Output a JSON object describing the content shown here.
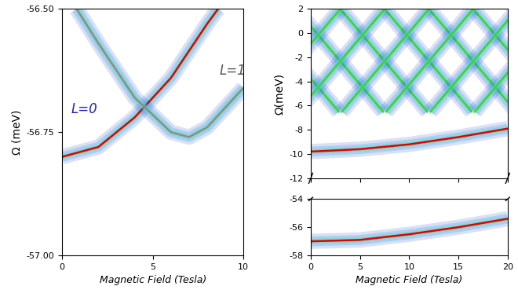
{
  "chart_data": [
    {
      "type": "line",
      "x_label": "Magnetic Field (Tesla)",
      "y_label": "Ω (meV)",
      "xlim": [
        0,
        10
      ],
      "ylim": [
        -57.0,
        -56.5
      ],
      "xticks": [
        0,
        5,
        10
      ],
      "yticks": [
        {
          "value": -57.0,
          "label": "-57.00"
        },
        {
          "value": -56.75,
          "label": "-56.75"
        },
        {
          "value": -56.5,
          "label": "-56.50"
        }
      ],
      "series": [
        {
          "name": "L=0",
          "color": "#e00000",
          "x": [
            0,
            2,
            4,
            6,
            8,
            8.6
          ],
          "values": [
            -56.8,
            -56.78,
            -56.72,
            -56.64,
            -56.53,
            -56.5
          ]
        },
        {
          "name": "L=1",
          "color": "#8c8c8c",
          "x": [
            0.8,
            2,
            4,
            6,
            7,
            8,
            10
          ],
          "values": [
            -56.5,
            -56.57,
            -56.68,
            -56.75,
            -56.76,
            -56.74,
            -56.66
          ]
        }
      ]
    },
    {
      "type": "line",
      "y_label": "Ω(meV)",
      "xlim": [
        0,
        20
      ],
      "ylim": [
        -12,
        2
      ],
      "xticks": [
        0,
        5,
        10,
        15,
        20
      ],
      "yticks": [
        2,
        0,
        -2,
        -4,
        -6,
        -8,
        -10,
        -12
      ],
      "tick_labels": "y",
      "series": [
        {
          "color": "#e00000",
          "x": [
            0,
            5,
            10,
            15,
            20
          ],
          "values": [
            -9.8,
            -9.6,
            -9.2,
            -8.6,
            -7.9
          ]
        },
        {
          "color": "#40d040",
          "x": [
            -6,
            2.85
          ],
          "values": [
            2,
            -6.5
          ]
        },
        {
          "color": "#40d040",
          "x": [
            -1.5,
            7.35
          ],
          "values": [
            2,
            -6.5
          ]
        },
        {
          "color": "#40d040",
          "x": [
            3,
            11.85
          ],
          "values": [
            2,
            -6.5
          ]
        },
        {
          "color": "#40d040",
          "x": [
            7.5,
            16.35
          ],
          "values": [
            2,
            -6.5
          ]
        },
        {
          "color": "#40d040",
          "x": [
            12,
            20.85
          ],
          "values": [
            2,
            -6.5
          ]
        },
        {
          "color": "#40d040",
          "x": [
            16.5,
            25.35
          ],
          "values": [
            2,
            -6.5
          ]
        },
        {
          "color": "#40d040",
          "x": [
            -5.85,
            3
          ],
          "values": [
            -6.5,
            2
          ]
        },
        {
          "color": "#40d040",
          "x": [
            -1.35,
            7.5
          ],
          "values": [
            -6.5,
            2
          ]
        },
        {
          "color": "#40d040",
          "x": [
            3.15,
            12
          ],
          "values": [
            -6.5,
            2
          ]
        },
        {
          "color": "#40d040",
          "x": [
            7.65,
            16.5
          ],
          "values": [
            -6.5,
            2
          ]
        },
        {
          "color": "#40d040",
          "x": [
            12.15,
            21
          ],
          "values": [
            -6.5,
            2
          ]
        },
        {
          "color": "#40d040",
          "x": [
            16.65,
            25.5
          ],
          "values": [
            -6.5,
            2
          ]
        }
      ]
    },
    {
      "type": "line",
      "x_label": "Magnetic Field (Tesla)",
      "xlim": [
        0,
        20
      ],
      "ylim": [
        -58,
        -54
      ],
      "xticks": [
        0,
        5,
        10,
        15,
        20
      ],
      "yticks": [
        -58,
        -56,
        -54
      ],
      "series": [
        {
          "color": "#e00000",
          "x": [
            0,
            5,
            10,
            15,
            20
          ],
          "values": [
            -57.0,
            -56.9,
            -56.5,
            -56.0,
            -55.4
          ]
        }
      ]
    }
  ]
}
